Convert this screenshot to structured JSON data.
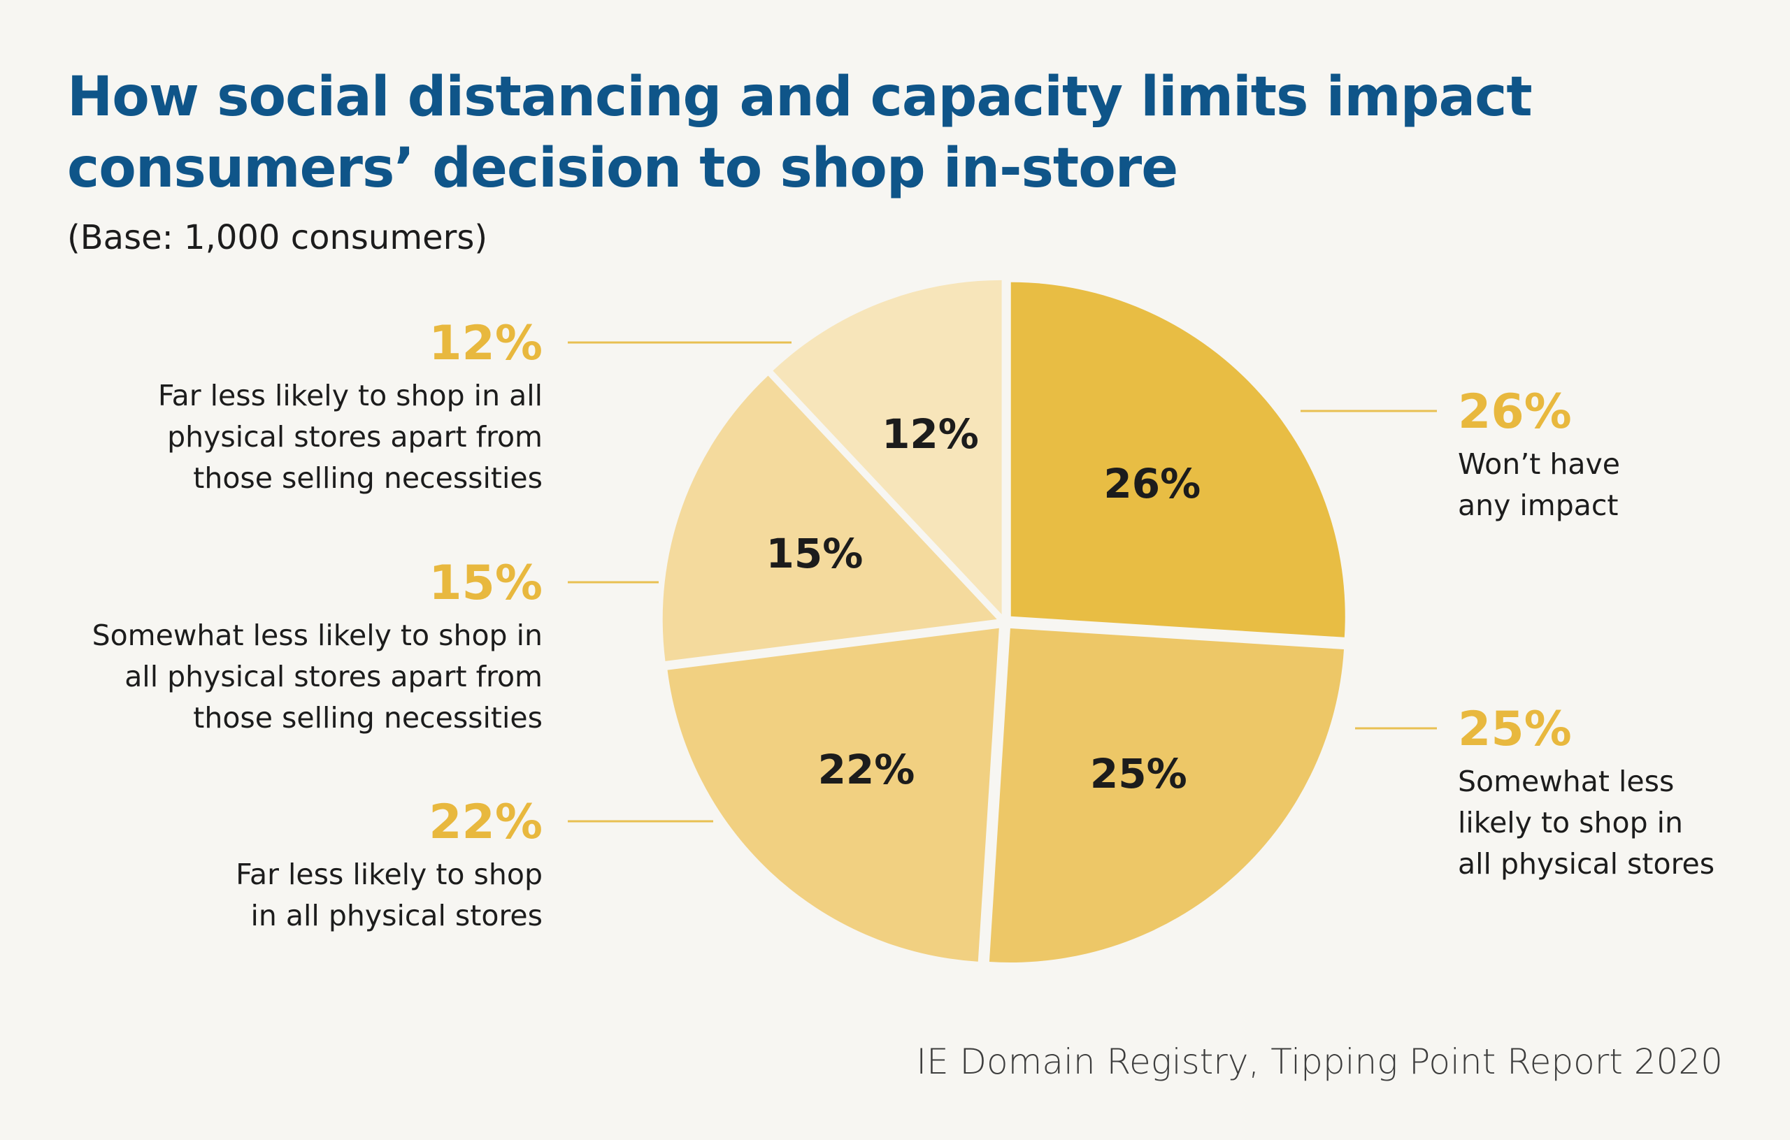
{
  "header": {
    "title_line1": "How social distancing and capacity limits impact",
    "title_line2": "consumers’ decision to shop in-store",
    "subtitle": "(Base: 1,000 consumers)"
  },
  "footer": {
    "source": "IE Domain Registry, Tipping Point Report 2020"
  },
  "colors": {
    "title": "#0f5589",
    "callout_value": "#e8b83e",
    "leader_line": "#e8c052",
    "slice_label": "#1c1c1c",
    "description": "#1c1c1c",
    "background": "#f7f6f2"
  },
  "chart_data": {
    "type": "pie",
    "title": "How social distancing and capacity limits impact consumers’ decision to shop in-store",
    "subtitle": "(Base: 1,000 consumers)",
    "unit": "%",
    "slices": [
      {
        "value": 26,
        "inner_label": "26%",
        "callout_value": "26%",
        "description_lines": [
          "Won’t have",
          "any impact"
        ],
        "color": "#e8bd44",
        "side": "right"
      },
      {
        "value": 25,
        "inner_label": "25%",
        "callout_value": "25%",
        "description_lines": [
          "Somewhat less",
          "likely to shop in",
          "all physical stores"
        ],
        "color": "#edc767",
        "side": "right"
      },
      {
        "value": 22,
        "inner_label": "22%",
        "callout_value": "22%",
        "description_lines": [
          "Far less likely to shop",
          "in all physical stores"
        ],
        "color": "#f1d081",
        "side": "left"
      },
      {
        "value": 15,
        "inner_label": "15%",
        "callout_value": "15%",
        "description_lines": [
          "Somewhat less likely to shop in",
          "all physical stores apart from",
          "those selling necessities"
        ],
        "color": "#f4da9d",
        "side": "left"
      },
      {
        "value": 12,
        "inner_label": "12%",
        "callout_value": "12%",
        "description_lines": [
          "Far less likely to shop in all",
          "physical stores apart from",
          "those selling necessities"
        ],
        "color": "#f7e5ba",
        "side": "left"
      }
    ]
  }
}
